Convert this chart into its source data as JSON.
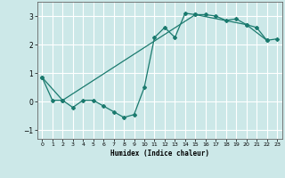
{
  "title": "",
  "xlabel": "Humidex (Indice chaleur)",
  "background_color": "#cce8e8",
  "grid_color": "#ffffff",
  "line_color": "#1a7a6e",
  "series1": {
    "x": [
      0,
      1,
      2,
      3,
      4,
      5,
      6,
      7,
      8,
      9,
      10,
      11,
      12,
      13,
      14,
      15,
      16,
      17,
      18,
      19,
      20,
      21,
      22,
      23
    ],
    "y": [
      0.85,
      0.05,
      0.05,
      -0.2,
      0.05,
      0.05,
      -0.15,
      -0.35,
      -0.55,
      -0.45,
      0.5,
      2.25,
      2.6,
      2.25,
      3.1,
      3.05,
      3.05,
      3.0,
      2.85,
      2.9,
      2.7,
      2.6,
      2.15,
      null
    ]
  },
  "series2": {
    "x": [
      0,
      2,
      15,
      20,
      22,
      23
    ],
    "y": [
      0.85,
      0.05,
      3.05,
      2.7,
      2.15,
      2.2
    ]
  },
  "xlim": [
    -0.5,
    23.5
  ],
  "ylim": [
    -1.3,
    3.5
  ],
  "yticks": [
    -1,
    0,
    1,
    2,
    3
  ],
  "xticks": [
    0,
    1,
    2,
    3,
    4,
    5,
    6,
    7,
    8,
    9,
    10,
    11,
    12,
    13,
    14,
    15,
    16,
    17,
    18,
    19,
    20,
    21,
    22,
    23
  ]
}
